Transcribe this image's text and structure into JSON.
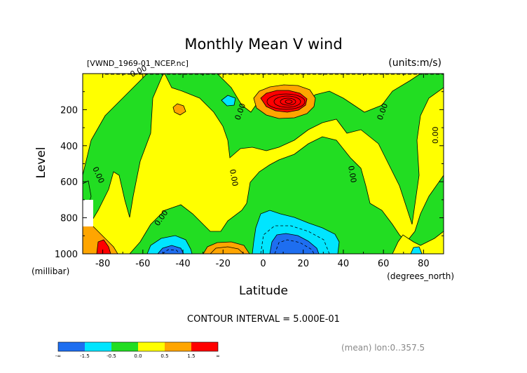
{
  "chart_data": {
    "type": "heatmap",
    "title": "Monthly Mean V wind",
    "file_label": "[VWND_1969-01_NCEP.nc]",
    "units_label": "(units:m/s)",
    "ylabel": "Level",
    "yunits": "(millibar)",
    "xlabel": "Latitude",
    "xunits": "(degrees_north)",
    "xlim": [
      -90,
      90
    ],
    "ylim": [
      1000,
      0
    ],
    "x_ticks": [
      {
        "value": -80,
        "label": "-80"
      },
      {
        "value": -60,
        "label": "-60"
      },
      {
        "value": -40,
        "label": "-40"
      },
      {
        "value": -20,
        "label": "-20"
      },
      {
        "value": 0,
        "label": "0"
      },
      {
        "value": 20,
        "label": "20"
      },
      {
        "value": 40,
        "label": "40"
      },
      {
        "value": 60,
        "label": "60"
      },
      {
        "value": 80,
        "label": "80"
      }
    ],
    "y_ticks": [
      {
        "value": 200,
        "label": "200"
      },
      {
        "value": 400,
        "label": "400"
      },
      {
        "value": 600,
        "label": "600"
      },
      {
        "value": 800,
        "label": "800"
      },
      {
        "value": 1000,
        "label": "1000"
      }
    ],
    "contour_interval_text": "CONTOUR INTERVAL = 5.000E-01",
    "contour_labels": [
      "0.00",
      "0.00",
      "0.00",
      "0.00",
      "0.00",
      "0.00",
      "0.00",
      "0.00",
      "0.00"
    ],
    "colorbar": {
      "bins": [
        {
          "from": "-∞",
          "to": -1.5,
          "color": "#1e6ef0"
        },
        {
          "from": -1.5,
          "to": -0.5,
          "color": "#00e5ff"
        },
        {
          "from": -0.5,
          "to": 0.0,
          "color": "#22dd22"
        },
        {
          "from": 0.0,
          "to": 0.5,
          "color": "#ffff00"
        },
        {
          "from": 0.5,
          "to": 1.5,
          "color": "#ffa500"
        },
        {
          "from": 1.5,
          "to": "∞",
          "color": "#ff0000"
        }
      ],
      "labels": [
        "-∞",
        "-1.5",
        "-0.5",
        "0.0",
        "0.5",
        "1.5",
        "∞"
      ]
    },
    "footer_note": "(mean) lon:0..357.5"
  }
}
